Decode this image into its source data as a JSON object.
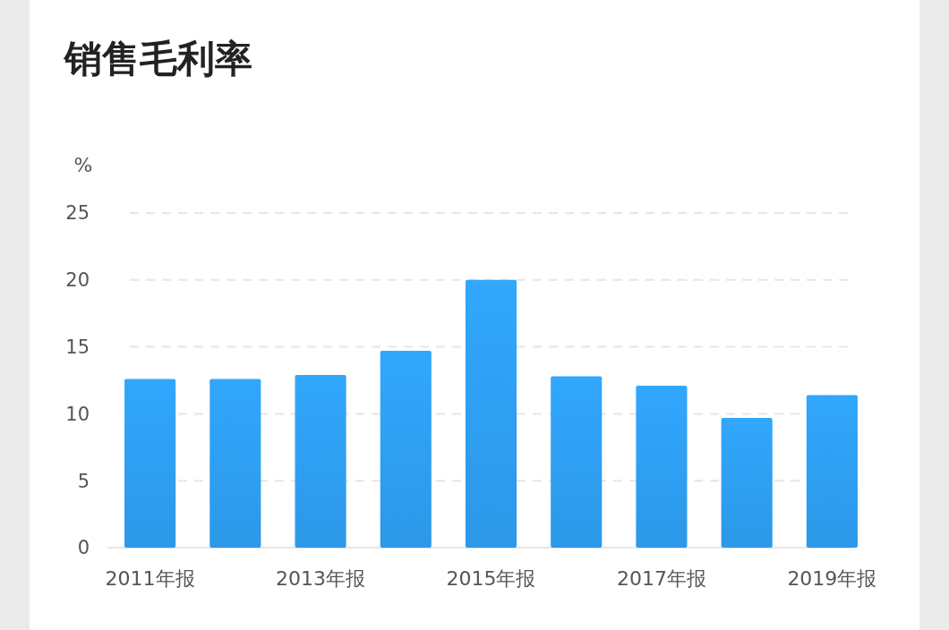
{
  "chart_data": {
    "type": "bar",
    "title": "销售毛利率",
    "ylabel": "%",
    "categories": [
      "2011年报",
      null,
      "2013年报",
      null,
      "2015年报",
      null,
      "2017年报",
      null,
      "2019年报"
    ],
    "values": [
      12.6,
      12.6,
      12.9,
      14.7,
      20.0,
      12.8,
      12.1,
      9.7,
      11.4
    ],
    "color": "#2e9ef0",
    "ylim": [
      0,
      25
    ],
    "yticks": [
      0,
      5,
      10,
      15,
      20,
      25
    ],
    "grid": "y"
  }
}
